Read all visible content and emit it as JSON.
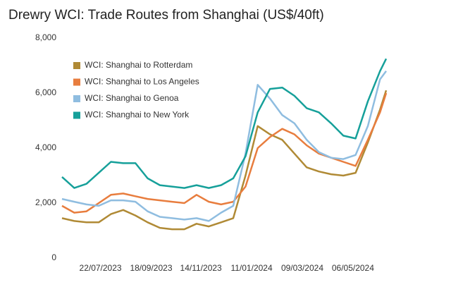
{
  "chart_data": {
    "type": "line",
    "title": "Drewry WCI: Trade Routes from Shanghai (US$/40ft)",
    "x": [
      "08/06/2023",
      "22/06/2023",
      "06/07/2023",
      "20/07/2023",
      "03/08/2023",
      "17/08/2023",
      "31/08/2023",
      "14/09/2023",
      "28/09/2023",
      "12/10/2023",
      "26/10/2023",
      "09/11/2023",
      "23/11/2023",
      "07/12/2023",
      "21/12/2023",
      "04/01/2024",
      "18/01/2024",
      "01/02/2024",
      "15/02/2024",
      "29/02/2024",
      "14/03/2024",
      "28/03/2024",
      "11/04/2024",
      "25/04/2024",
      "09/05/2024",
      "23/05/2024",
      "06/06/2024",
      "13/06/2024"
    ],
    "xlim": [
      "08/06/2023",
      "13/06/2024"
    ],
    "xticks": [
      "22/07/2023",
      "18/09/2023",
      "14/11/2023",
      "11/01/2024",
      "09/03/2024",
      "06/05/2024"
    ],
    "ylim": [
      0,
      8000
    ],
    "yticks": [
      0,
      {
        "value": 2000,
        "label": "2,000"
      },
      {
        "value": 4000,
        "label": "4,000"
      },
      {
        "value": 6000,
        "label": "6,000"
      },
      {
        "value": 8000,
        "label": "8,000"
      }
    ],
    "grid": false,
    "legend": "top-left",
    "series": [
      {
        "name": "WCI: Shanghai to Rotterdam",
        "color": "#b08a35",
        "values": [
          1450,
          1350,
          1300,
          1300,
          1600,
          1750,
          1550,
          1300,
          1100,
          1050,
          1050,
          1250,
          1150,
          1300,
          1450,
          3000,
          4800,
          4500,
          4300,
          3800,
          3300,
          3150,
          3050,
          3000,
          3100,
          4200,
          5400,
          6100
        ]
      },
      {
        "name": "WCI: Shanghai to Los Angeles",
        "color": "#e87d3e",
        "values": [
          1900,
          1650,
          1700,
          2000,
          2300,
          2350,
          2250,
          2150,
          2100,
          2050,
          2000,
          2300,
          2050,
          1950,
          2050,
          2600,
          4000,
          4400,
          4700,
          4500,
          4100,
          3800,
          3650,
          3500,
          3350,
          4300,
          5300,
          6000
        ]
      },
      {
        "name": "WCI: Shanghai to Genoa",
        "color": "#8fbde0",
        "values": [
          2150,
          2050,
          1950,
          1900,
          2100,
          2100,
          2050,
          1700,
          1500,
          1450,
          1400,
          1450,
          1350,
          1650,
          1900,
          3800,
          6300,
          5800,
          5200,
          4900,
          4300,
          3850,
          3650,
          3600,
          3750,
          4800,
          6500,
          6800
        ]
      },
      {
        "name": "WCI: Shanghai to New York",
        "color": "#16a09a",
        "values": [
          2950,
          2550,
          2700,
          3100,
          3500,
          3450,
          3450,
          2900,
          2650,
          2600,
          2550,
          2650,
          2550,
          2650,
          2900,
          3700,
          5300,
          6150,
          6200,
          5900,
          5450,
          5300,
          4900,
          4450,
          4350,
          5700,
          6800,
          7250
        ]
      }
    ]
  }
}
